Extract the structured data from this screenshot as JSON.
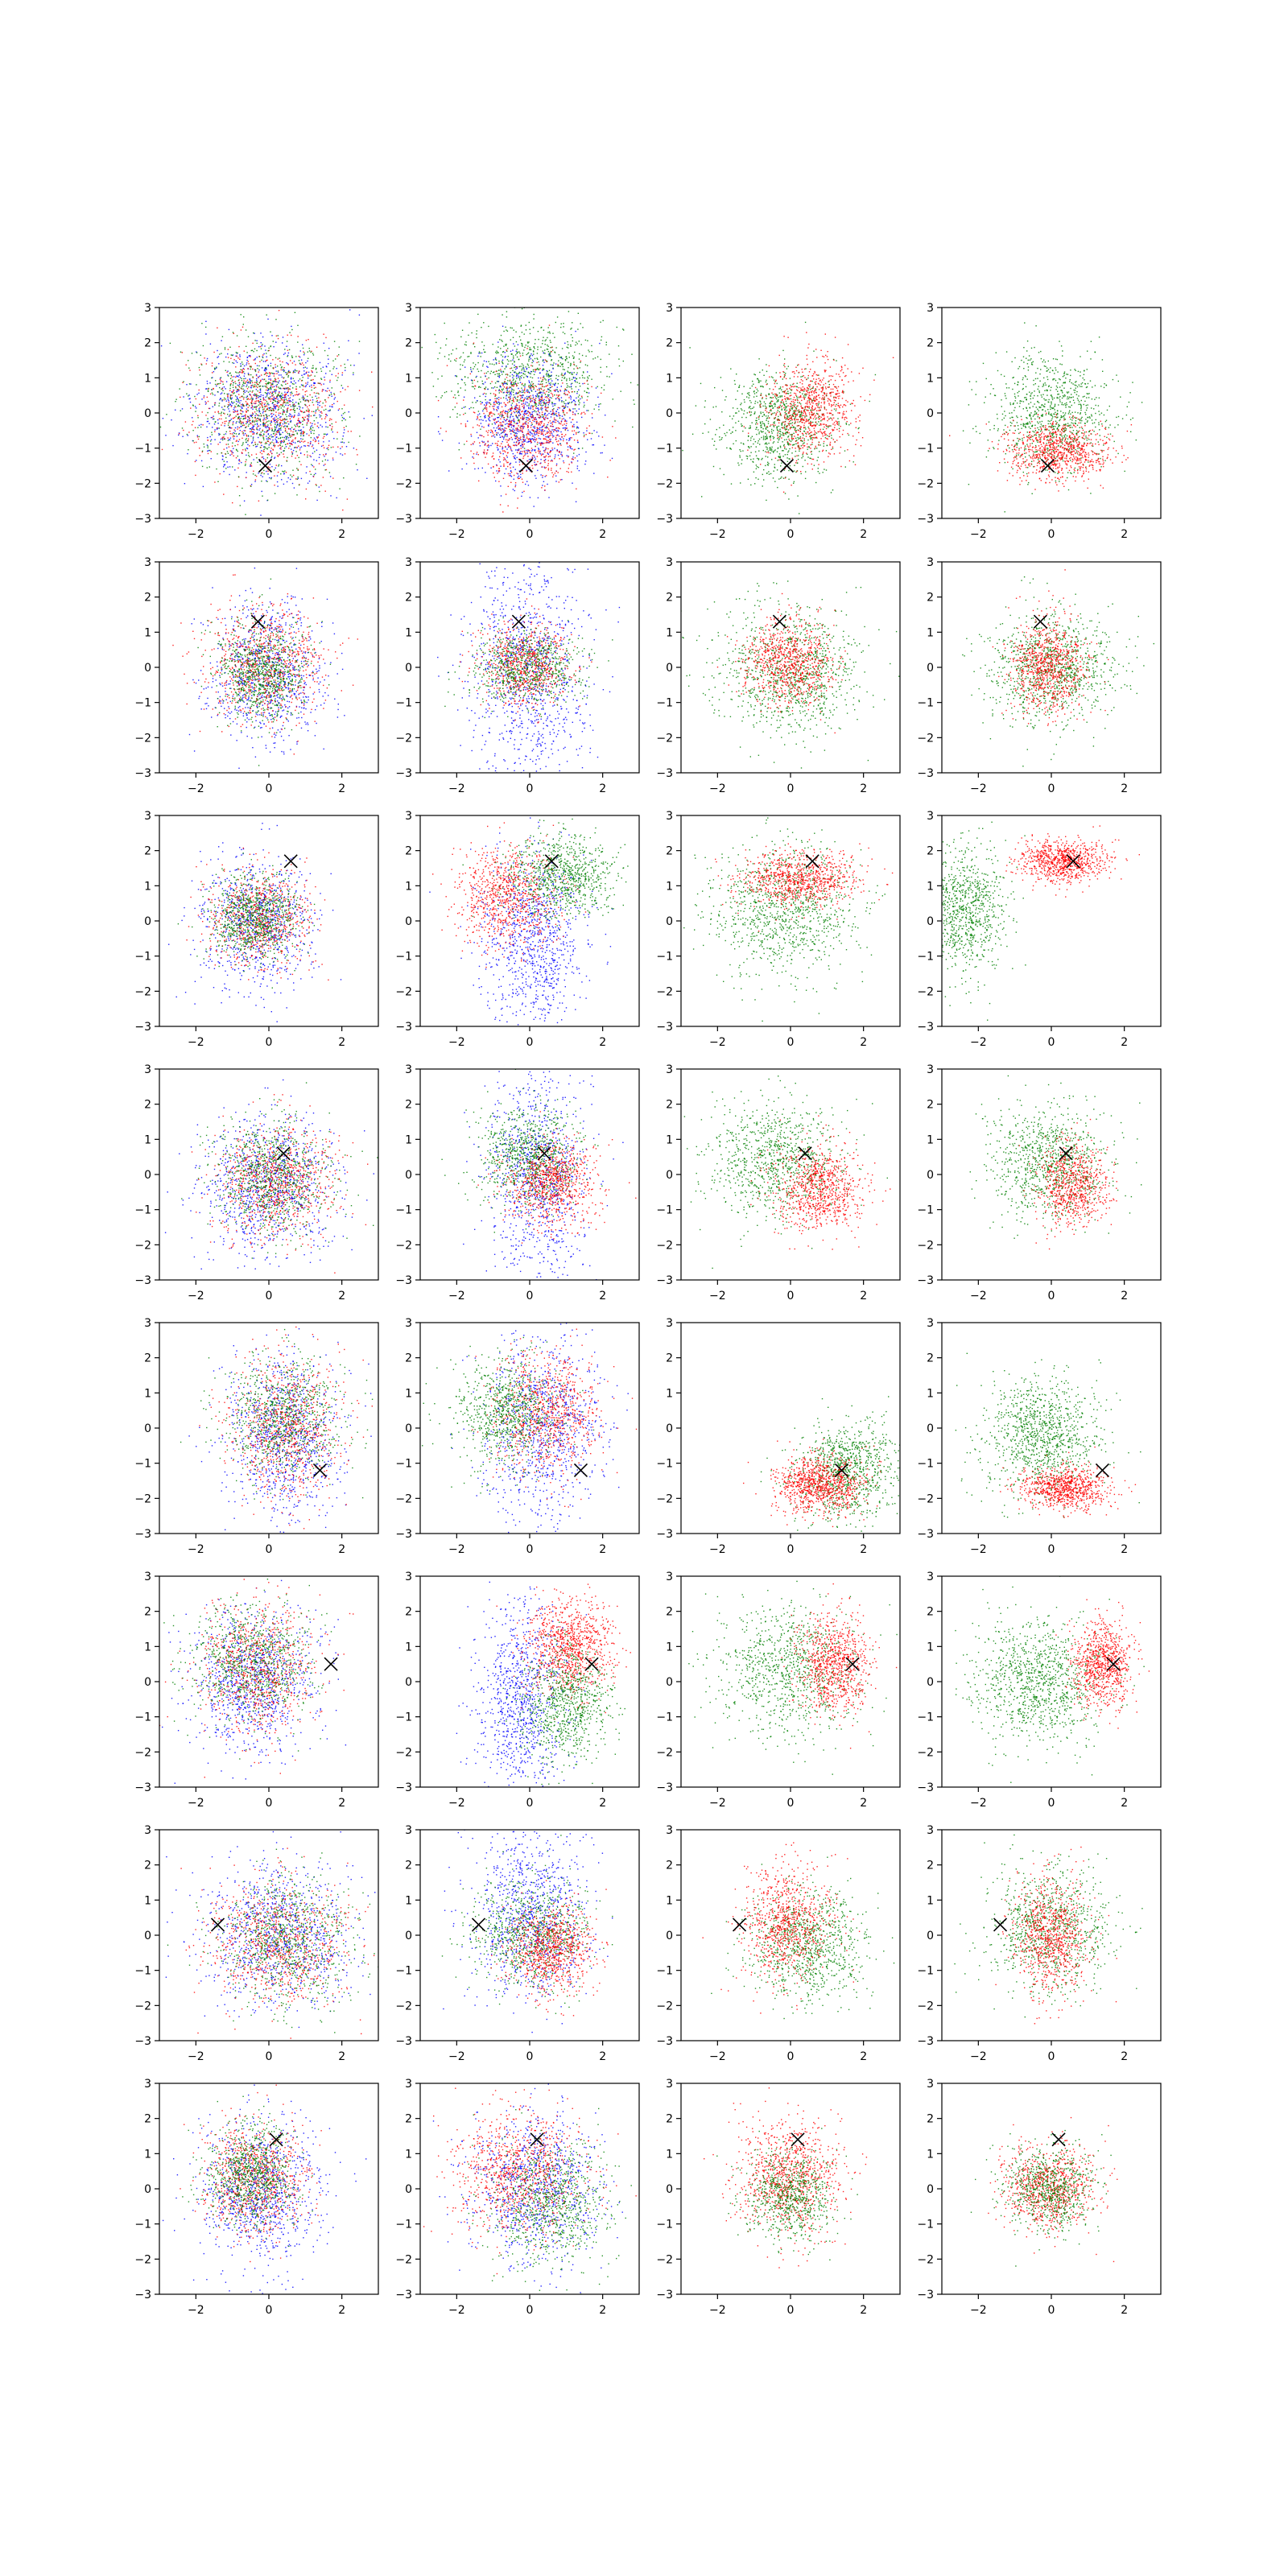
{
  "figure": {
    "layout": {
      "rows": 8,
      "cols": 4
    },
    "colors": {
      "blue": "#0000ff",
      "red": "#ff0000",
      "green": "#008000",
      "marker": "#000000"
    }
  },
  "chart_data": {
    "type": "scatter",
    "xlim": [
      -3,
      3
    ],
    "ylim": [
      -3,
      3
    ],
    "xticks": [
      -2,
      0,
      2
    ],
    "yticks": [
      -3,
      -2,
      -1,
      0,
      1,
      2,
      3
    ],
    "xtick_labels": [
      "−2",
      "0",
      "2"
    ],
    "ytick_labels": [
      "−3",
      "−2",
      "−1",
      "0",
      "1",
      "2",
      "3"
    ],
    "grid": false,
    "marker_symbol": "x",
    "rows": [
      {
        "marker": [
          -0.1,
          -1.5
        ],
        "panels": [
          [
            {
              "color": "blue",
              "cx": 0.0,
              "cy": 0.0,
              "sx": 1.0,
              "sy": 1.0,
              "n": 900
            },
            {
              "color": "red",
              "cx": 0.0,
              "cy": 0.1,
              "sx": 1.0,
              "sy": 1.0,
              "n": 800
            },
            {
              "color": "green",
              "cx": 0.0,
              "cy": 0.2,
              "sx": 1.0,
              "sy": 1.0,
              "n": 800
            }
          ],
          [
            {
              "color": "green",
              "cx": 0.0,
              "cy": 1.1,
              "sx": 1.1,
              "sy": 0.8,
              "n": 900
            },
            {
              "color": "blue",
              "cx": 0.0,
              "cy": -0.2,
              "sx": 0.8,
              "sy": 0.9,
              "n": 900
            },
            {
              "color": "red",
              "cx": -0.1,
              "cy": -0.4,
              "sx": 0.8,
              "sy": 0.8,
              "n": 800
            }
          ],
          [
            {
              "color": "green",
              "cx": -0.3,
              "cy": -0.3,
              "sx": 0.8,
              "sy": 0.8,
              "n": 900
            },
            {
              "color": "red",
              "cx": 0.5,
              "cy": 0.1,
              "sx": 0.6,
              "sy": 0.7,
              "n": 800
            }
          ],
          [
            {
              "color": "green",
              "cx": 0.0,
              "cy": 0.0,
              "sx": 0.8,
              "sy": 0.8,
              "n": 900
            },
            {
              "color": "red",
              "cx": 0.2,
              "cy": -1.1,
              "sx": 0.7,
              "sy": 0.4,
              "n": 800
            }
          ]
        ]
      },
      {
        "marker": [
          -0.3,
          1.3
        ],
        "panels": [
          [
            {
              "color": "blue",
              "cx": -0.1,
              "cy": -0.1,
              "sx": 0.8,
              "sy": 1.0,
              "n": 800
            },
            {
              "color": "red",
              "cx": -0.1,
              "cy": 0.1,
              "sx": 0.8,
              "sy": 0.8,
              "n": 800
            },
            {
              "color": "green",
              "cx": -0.2,
              "cy": -0.1,
              "sx": 0.6,
              "sy": 0.7,
              "n": 800
            }
          ],
          [
            {
              "color": "blue",
              "cx": 0.0,
              "cy": -0.2,
              "sx": 0.8,
              "sy": 1.7,
              "n": 1000
            },
            {
              "color": "red",
              "cx": -0.1,
              "cy": 0.1,
              "sx": 0.6,
              "sy": 0.6,
              "n": 700
            },
            {
              "color": "green",
              "cx": -0.1,
              "cy": 0.0,
              "sx": 0.8,
              "sy": 0.5,
              "n": 700
            }
          ],
          [
            {
              "color": "green",
              "cx": 0.0,
              "cy": -0.1,
              "sx": 1.0,
              "sy": 0.9,
              "n": 1000
            },
            {
              "color": "red",
              "cx": 0.0,
              "cy": 0.1,
              "sx": 0.6,
              "sy": 0.6,
              "n": 800
            }
          ],
          [
            {
              "color": "green",
              "cx": 0.0,
              "cy": 0.0,
              "sx": 0.9,
              "sy": 0.8,
              "n": 1000
            },
            {
              "color": "red",
              "cx": -0.1,
              "cy": 0.1,
              "sx": 0.5,
              "sy": 0.7,
              "n": 800
            }
          ]
        ]
      },
      {
        "marker": [
          0.6,
          1.7
        ],
        "panels": [
          [
            {
              "color": "blue",
              "cx": -0.3,
              "cy": -0.1,
              "sx": 0.8,
              "sy": 0.9,
              "n": 800
            },
            {
              "color": "red",
              "cx": -0.3,
              "cy": 0.1,
              "sx": 0.7,
              "sy": 0.7,
              "n": 700
            },
            {
              "color": "green",
              "cx": -0.4,
              "cy": 0.1,
              "sx": 0.6,
              "sy": 0.6,
              "n": 800
            }
          ],
          [
            {
              "color": "blue",
              "cx": 0.1,
              "cy": -0.6,
              "sx": 0.7,
              "sy": 1.3,
              "n": 900
            },
            {
              "color": "red",
              "cx": -0.6,
              "cy": 0.7,
              "sx": 0.7,
              "sy": 0.7,
              "n": 800
            },
            {
              "color": "green",
              "cx": 0.9,
              "cy": 1.3,
              "sx": 0.7,
              "sy": 0.6,
              "n": 800
            }
          ],
          [
            {
              "color": "green",
              "cx": -0.2,
              "cy": 0.3,
              "sx": 1.0,
              "sy": 0.9,
              "n": 1000
            },
            {
              "color": "red",
              "cx": 0.2,
              "cy": 1.2,
              "sx": 0.8,
              "sy": 0.4,
              "n": 800
            }
          ],
          [
            {
              "color": "green",
              "cx": -2.4,
              "cy": 0.3,
              "sx": 0.6,
              "sy": 0.9,
              "n": 900
            },
            {
              "color": "red",
              "cx": 0.3,
              "cy": 1.7,
              "sx": 0.6,
              "sy": 0.3,
              "n": 800
            }
          ]
        ]
      },
      {
        "marker": [
          0.4,
          0.6
        ],
        "panels": [
          [
            {
              "color": "blue",
              "cx": 0.0,
              "cy": -0.3,
              "sx": 0.9,
              "sy": 1.0,
              "n": 900
            },
            {
              "color": "red",
              "cx": 0.2,
              "cy": -0.2,
              "sx": 0.8,
              "sy": 0.8,
              "n": 800
            },
            {
              "color": "green",
              "cx": 0.1,
              "cy": -0.1,
              "sx": 0.8,
              "sy": 0.8,
              "n": 800
            }
          ],
          [
            {
              "color": "blue",
              "cx": 0.2,
              "cy": 0.0,
              "sx": 0.7,
              "sy": 1.5,
              "n": 900
            },
            {
              "color": "green",
              "cx": 0.0,
              "cy": 0.5,
              "sx": 0.7,
              "sy": 0.7,
              "n": 800
            },
            {
              "color": "red",
              "cx": 0.6,
              "cy": -0.2,
              "sx": 0.6,
              "sy": 0.6,
              "n": 800
            }
          ],
          [
            {
              "color": "green",
              "cx": -0.4,
              "cy": 0.4,
              "sx": 0.9,
              "sy": 0.8,
              "n": 900
            },
            {
              "color": "red",
              "cx": 0.8,
              "cy": -0.4,
              "sx": 0.6,
              "sy": 0.6,
              "n": 800
            }
          ],
          [
            {
              "color": "green",
              "cx": 0.0,
              "cy": 0.3,
              "sx": 0.8,
              "sy": 0.8,
              "n": 900
            },
            {
              "color": "red",
              "cx": 0.6,
              "cy": -0.3,
              "sx": 0.5,
              "sy": 0.6,
              "n": 700
            }
          ]
        ]
      },
      {
        "marker": [
          1.4,
          -1.2
        ],
        "panels": [
          [
            {
              "color": "blue",
              "cx": 0.4,
              "cy": -0.2,
              "sx": 0.8,
              "sy": 1.2,
              "n": 900
            },
            {
              "color": "red",
              "cx": 0.5,
              "cy": 0.0,
              "sx": 0.8,
              "sy": 1.0,
              "n": 800
            },
            {
              "color": "green",
              "cx": 0.4,
              "cy": 0.3,
              "sx": 0.8,
              "sy": 0.9,
              "n": 800
            }
          ],
          [
            {
              "color": "blue",
              "cx": 0.4,
              "cy": 0.0,
              "sx": 0.8,
              "sy": 1.3,
              "n": 900
            },
            {
              "color": "red",
              "cx": 0.5,
              "cy": 0.4,
              "sx": 0.7,
              "sy": 0.9,
              "n": 800
            },
            {
              "color": "green",
              "cx": -0.6,
              "cy": 0.5,
              "sx": 0.7,
              "sy": 0.8,
              "n": 800
            }
          ],
          [
            {
              "color": "green",
              "cx": 1.6,
              "cy": -1.2,
              "sx": 0.7,
              "sy": 0.7,
              "n": 900
            },
            {
              "color": "red",
              "cx": 0.8,
              "cy": -1.6,
              "sx": 0.6,
              "sy": 0.4,
              "n": 900
            }
          ],
          [
            {
              "color": "green",
              "cx": -0.3,
              "cy": -0.2,
              "sx": 0.8,
              "sy": 0.8,
              "n": 1000
            },
            {
              "color": "red",
              "cx": 0.4,
              "cy": -1.7,
              "sx": 0.6,
              "sy": 0.3,
              "n": 800
            }
          ]
        ]
      },
      {
        "marker": [
          1.7,
          0.5
        ],
        "panels": [
          [
            {
              "color": "blue",
              "cx": -0.5,
              "cy": 0.0,
              "sx": 0.9,
              "sy": 1.0,
              "n": 900
            },
            {
              "color": "red",
              "cx": -0.3,
              "cy": 0.4,
              "sx": 0.8,
              "sy": 0.9,
              "n": 800
            },
            {
              "color": "green",
              "cx": -0.5,
              "cy": 0.6,
              "sx": 0.8,
              "sy": 0.8,
              "n": 800
            }
          ],
          [
            {
              "color": "blue",
              "cx": -0.2,
              "cy": -0.5,
              "sx": 0.6,
              "sy": 1.4,
              "n": 900
            },
            {
              "color": "red",
              "cx": 1.1,
              "cy": 1.0,
              "sx": 0.6,
              "sy": 0.7,
              "n": 900
            },
            {
              "color": "green",
              "cx": 1.0,
              "cy": -0.7,
              "sx": 0.6,
              "sy": 0.8,
              "n": 800
            }
          ],
          [
            {
              "color": "green",
              "cx": -0.1,
              "cy": 0.3,
              "sx": 1.0,
              "sy": 0.9,
              "n": 900
            },
            {
              "color": "red",
              "cx": 1.2,
              "cy": 0.5,
              "sx": 0.5,
              "sy": 0.7,
              "n": 800
            }
          ],
          [
            {
              "color": "green",
              "cx": -0.3,
              "cy": 0.0,
              "sx": 0.9,
              "sy": 0.9,
              "n": 1000
            },
            {
              "color": "red",
              "cx": 1.4,
              "cy": 0.5,
              "sx": 0.4,
              "sy": 0.6,
              "n": 800
            }
          ]
        ]
      },
      {
        "marker": [
          -1.4,
          0.3
        ],
        "panels": [
          [
            {
              "color": "blue",
              "cx": 0.2,
              "cy": 0.0,
              "sx": 1.0,
              "sy": 1.0,
              "n": 900
            },
            {
              "color": "red",
              "cx": 0.3,
              "cy": -0.2,
              "sx": 1.0,
              "sy": 0.9,
              "n": 800
            },
            {
              "color": "green",
              "cx": 0.5,
              "cy": -0.2,
              "sx": 0.9,
              "sy": 0.9,
              "n": 800
            }
          ],
          [
            {
              "color": "blue",
              "cx": 0.0,
              "cy": 0.5,
              "sx": 0.8,
              "sy": 1.2,
              "n": 900
            },
            {
              "color": "green",
              "cx": 0.0,
              "cy": 0.0,
              "sx": 0.8,
              "sy": 0.7,
              "n": 800
            },
            {
              "color": "red",
              "cx": 0.6,
              "cy": -0.4,
              "sx": 0.6,
              "sy": 0.6,
              "n": 800
            }
          ],
          [
            {
              "color": "green",
              "cx": 0.4,
              "cy": -0.3,
              "sx": 0.8,
              "sy": 0.8,
              "n": 900
            },
            {
              "color": "red",
              "cx": -0.1,
              "cy": 0.3,
              "sx": 0.6,
              "sy": 0.8,
              "n": 800
            }
          ],
          [
            {
              "color": "green",
              "cx": 0.0,
              "cy": 0.2,
              "sx": 0.8,
              "sy": 0.9,
              "n": 900
            },
            {
              "color": "red",
              "cx": 0.0,
              "cy": 0.0,
              "sx": 0.5,
              "sy": 0.8,
              "n": 800
            }
          ]
        ]
      },
      {
        "marker": [
          0.2,
          1.4
        ],
        "panels": [
          [
            {
              "color": "blue",
              "cx": -0.2,
              "cy": -0.1,
              "sx": 0.8,
              "sy": 1.0,
              "n": 900
            },
            {
              "color": "red",
              "cx": -0.4,
              "cy": 0.3,
              "sx": 0.7,
              "sy": 0.8,
              "n": 800
            },
            {
              "color": "green",
              "cx": -0.5,
              "cy": 0.4,
              "sx": 0.6,
              "sy": 0.7,
              "n": 800
            }
          ],
          [
            {
              "color": "blue",
              "cx": 0.1,
              "cy": 0.0,
              "sx": 0.9,
              "sy": 1.1,
              "n": 900
            },
            {
              "color": "red",
              "cx": -0.3,
              "cy": 0.5,
              "sx": 0.9,
              "sy": 0.9,
              "n": 900
            },
            {
              "color": "green",
              "cx": 0.6,
              "cy": -0.4,
              "sx": 0.8,
              "sy": 0.9,
              "n": 800
            }
          ],
          [
            {
              "color": "red",
              "cx": 0.0,
              "cy": 0.3,
              "sx": 0.7,
              "sy": 0.8,
              "n": 900
            },
            {
              "color": "green",
              "cx": 0.0,
              "cy": -0.2,
              "sx": 0.6,
              "sy": 0.6,
              "n": 700
            }
          ],
          [
            {
              "color": "red",
              "cx": -0.1,
              "cy": 0.0,
              "sx": 0.6,
              "sy": 0.6,
              "n": 800
            },
            {
              "color": "green",
              "cx": 0.0,
              "cy": 0.0,
              "sx": 0.6,
              "sy": 0.6,
              "n": 700
            }
          ]
        ]
      }
    ]
  }
}
